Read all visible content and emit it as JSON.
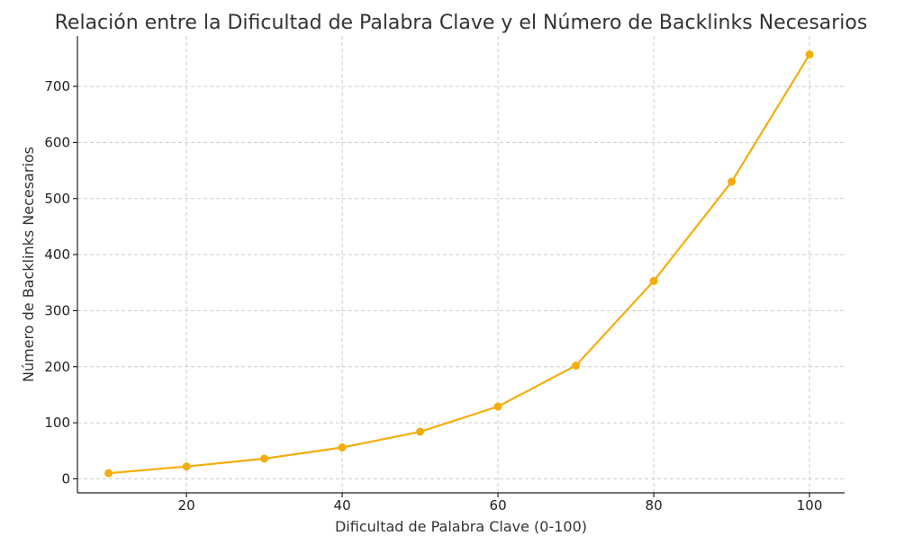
{
  "chart_data": {
    "type": "line",
    "title": "Relación entre la Dificultad de Palabra Clave y el Número de Backlinks Necesarios",
    "xlabel": "Dificultad de Palabra Clave (0-100)",
    "ylabel": "Número de Backlinks Necesarios",
    "x": [
      10,
      20,
      30,
      40,
      50,
      60,
      70,
      80,
      90,
      100
    ],
    "series": [
      {
        "values": [
          10,
          22,
          36,
          56,
          84,
          129,
          202,
          353,
          530,
          757
        ],
        "color": "#f5ad0d"
      }
    ],
    "xlim": [
      6,
      104.5
    ],
    "ylim": [
      -25,
      790
    ],
    "xticks": [
      20,
      40,
      60,
      80,
      100
    ],
    "yticks": [
      0,
      100,
      200,
      300,
      400,
      500,
      600,
      700
    ],
    "grid": true
  }
}
